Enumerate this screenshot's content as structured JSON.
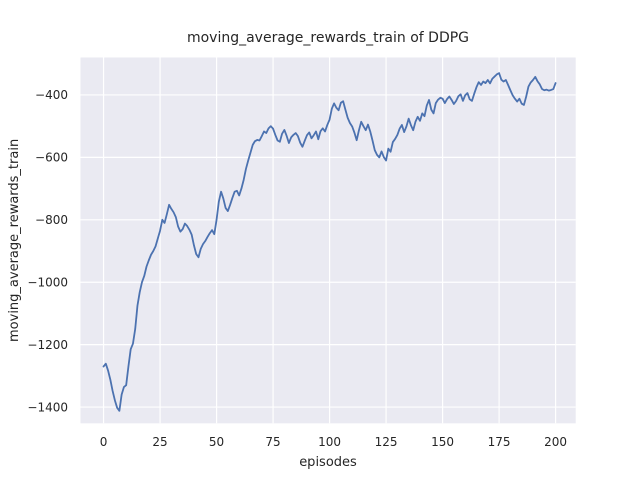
{
  "chart_data": {
    "type": "line",
    "title": "moving_average_rewards_train of DDPG",
    "xlabel": "episodes",
    "ylabel": "moving_average_rewards_train",
    "legend": null,
    "grid": true,
    "legend_position": "none",
    "xlim": [
      -10.2,
      208.9
    ],
    "ylim": [
      -1452,
      -280
    ],
    "xticks": [
      0,
      25,
      50,
      75,
      100,
      125,
      150,
      175,
      200
    ],
    "yticks": [
      -400,
      -600,
      -800,
      -1000,
      -1200,
      -1400
    ],
    "style": {
      "line_color": "#4c72b0",
      "plot_bg": "#eaeaf2",
      "grid_color": "#ffffff",
      "figure_bg": "#ffffff",
      "text_color": "#262626"
    },
    "series_name": "moving_average_rewards_train",
    "x": [
      0,
      1,
      2,
      3,
      4,
      5,
      6,
      7,
      8,
      9,
      10,
      11,
      12,
      13,
      14,
      15,
      16,
      17,
      18,
      19,
      20,
      21,
      22,
      23,
      24,
      25,
      26,
      27,
      28,
      29,
      30,
      31,
      32,
      33,
      34,
      35,
      36,
      37,
      38,
      39,
      40,
      41,
      42,
      43,
      44,
      45,
      46,
      47,
      48,
      49,
      50,
      51,
      52,
      53,
      54,
      55,
      56,
      57,
      58,
      59,
      60,
      61,
      62,
      63,
      64,
      65,
      66,
      67,
      68,
      69,
      70,
      71,
      72,
      73,
      74,
      75,
      76,
      77,
      78,
      79,
      80,
      81,
      82,
      83,
      84,
      85,
      86,
      87,
      88,
      89,
      90,
      91,
      92,
      93,
      94,
      95,
      96,
      97,
      98,
      99,
      100,
      101,
      102,
      103,
      104,
      105,
      106,
      107,
      108,
      109,
      110,
      111,
      112,
      113,
      114,
      115,
      116,
      117,
      118,
      119,
      120,
      121,
      122,
      123,
      124,
      125,
      126,
      127,
      128,
      129,
      130,
      131,
      132,
      133,
      134,
      135,
      136,
      137,
      138,
      139,
      140,
      141,
      142,
      143,
      144,
      145,
      146,
      147,
      148,
      149,
      150,
      151,
      152,
      153,
      154,
      155,
      156,
      157,
      158,
      159,
      160,
      161,
      162,
      163,
      164,
      165,
      166,
      167,
      168,
      169,
      170,
      171,
      172,
      173,
      174,
      175,
      176,
      177,
      178,
      179,
      180,
      181,
      182,
      183,
      184,
      185,
      186,
      187,
      188,
      189,
      190,
      191,
      192,
      193,
      194,
      195,
      196,
      197,
      198,
      199,
      200
    ],
    "y": [
      -1270,
      -1261,
      -1283,
      -1312,
      -1348,
      -1378,
      -1402,
      -1412,
      -1360,
      -1336,
      -1330,
      -1270,
      -1215,
      -1197,
      -1150,
      -1075,
      -1032,
      -1000,
      -980,
      -950,
      -930,
      -912,
      -900,
      -885,
      -860,
      -835,
      -800,
      -810,
      -782,
      -752,
      -765,
      -776,
      -792,
      -822,
      -838,
      -830,
      -812,
      -820,
      -832,
      -848,
      -882,
      -910,
      -920,
      -893,
      -878,
      -868,
      -855,
      -843,
      -833,
      -846,
      -800,
      -742,
      -710,
      -732,
      -762,
      -772,
      -752,
      -730,
      -710,
      -707,
      -722,
      -700,
      -672,
      -637,
      -610,
      -585,
      -560,
      -548,
      -544,
      -546,
      -532,
      -517,
      -522,
      -507,
      -500,
      -508,
      -528,
      -546,
      -550,
      -524,
      -512,
      -531,
      -554,
      -536,
      -528,
      -522,
      -532,
      -553,
      -566,
      -547,
      -529,
      -520,
      -539,
      -529,
      -517,
      -542,
      -516,
      -507,
      -517,
      -496,
      -479,
      -444,
      -427,
      -441,
      -449,
      -425,
      -420,
      -447,
      -473,
      -490,
      -501,
      -521,
      -545,
      -513,
      -486,
      -500,
      -513,
      -495,
      -517,
      -546,
      -577,
      -592,
      -600,
      -581,
      -599,
      -610,
      -572,
      -582,
      -551,
      -541,
      -528,
      -508,
      -496,
      -519,
      -501,
      -476,
      -497,
      -513,
      -486,
      -470,
      -483,
      -459,
      -468,
      -434,
      -416,
      -447,
      -459,
      -426,
      -415,
      -409,
      -412,
      -426,
      -413,
      -405,
      -416,
      -429,
      -419,
      -404,
      -398,
      -419,
      -401,
      -394,
      -414,
      -419,
      -396,
      -375,
      -359,
      -368,
      -357,
      -362,
      -352,
      -363,
      -348,
      -341,
      -334,
      -330,
      -351,
      -357,
      -352,
      -368,
      -385,
      -401,
      -412,
      -421,
      -412,
      -428,
      -432,
      -405,
      -373,
      -360,
      -352,
      -342,
      -356,
      -366,
      -381,
      -385,
      -383,
      -386,
      -384,
      -381,
      -362
    ]
  }
}
